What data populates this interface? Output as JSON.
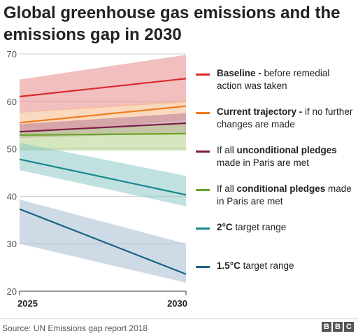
{
  "title": "Global greenhouse gas emissions and the emissions gap in 2030",
  "source": "Source: UN Emissions gap report 2018",
  "logo": [
    "B",
    "B",
    "C"
  ],
  "chart_data": {
    "type": "line",
    "x": [
      2025,
      2030
    ],
    "x_tick_labels": [
      "2025",
      "2030"
    ],
    "ylim": [
      20,
      70
    ],
    "y_ticks": [
      "20",
      "30",
      "40",
      "50",
      "60",
      "70"
    ],
    "grid": true,
    "legend_position": "right",
    "series": [
      {
        "key": "baseline",
        "color": "#d92b2b",
        "band_color": "#e78a8a",
        "values": [
          61,
          64.8
        ],
        "band_low": [
          57.6,
          59.8
        ],
        "band_high": [
          64.6,
          69.8
        ],
        "legend_bold": "Baseline -",
        "legend_rest": " before remedial action was taken"
      },
      {
        "key": "current-trajectory",
        "color": "#f27a1c",
        "band_color": "#f7b98a",
        "values": [
          55.5,
          59
        ],
        "band_low": [
          53.2,
          56
        ],
        "band_high": [
          57.8,
          60.2
        ],
        "legend_bold": "Current trajectory -",
        "legend_rest": " if no further changes are made"
      },
      {
        "key": "unconditional-pledges",
        "color": "#7a1d45",
        "band_color": "#b87a95",
        "values": [
          53.6,
          55.4
        ],
        "band_low": [
          52.3,
          53.3
        ],
        "band_high": [
          55.2,
          57.5
        ],
        "legend_pre": "If all ",
        "legend_bold": "unconditional pledges",
        "legend_rest": " made in Paris are met"
      },
      {
        "key": "conditional-pledges",
        "color": "#6aa42b",
        "band_color": "#b5d48b",
        "values": [
          52.9,
          53.2
        ],
        "band_low": [
          49.6,
          49.6
        ],
        "band_high": [
          53.5,
          55.4
        ],
        "legend_pre": "If all ",
        "legend_bold": "conditional pledges",
        "legend_rest": " made in Paris are met"
      },
      {
        "key": "2c",
        "color": "#17878f",
        "band_color": "#8ec8c7",
        "values": [
          47.8,
          40.3
        ],
        "band_low": [
          45.5,
          37.9
        ],
        "band_high": [
          51.3,
          44.3
        ],
        "legend_bold": "2°C",
        "legend_rest": " target range"
      },
      {
        "key": "1.5c",
        "color": "#1b6584",
        "band_color": "#a5bccf",
        "values": [
          37.3,
          23.6
        ],
        "band_low": [
          30,
          21.8
        ],
        "band_high": [
          39.3,
          30
        ],
        "legend_bold": "1.5°C",
        "legend_rest": " target range"
      }
    ]
  }
}
